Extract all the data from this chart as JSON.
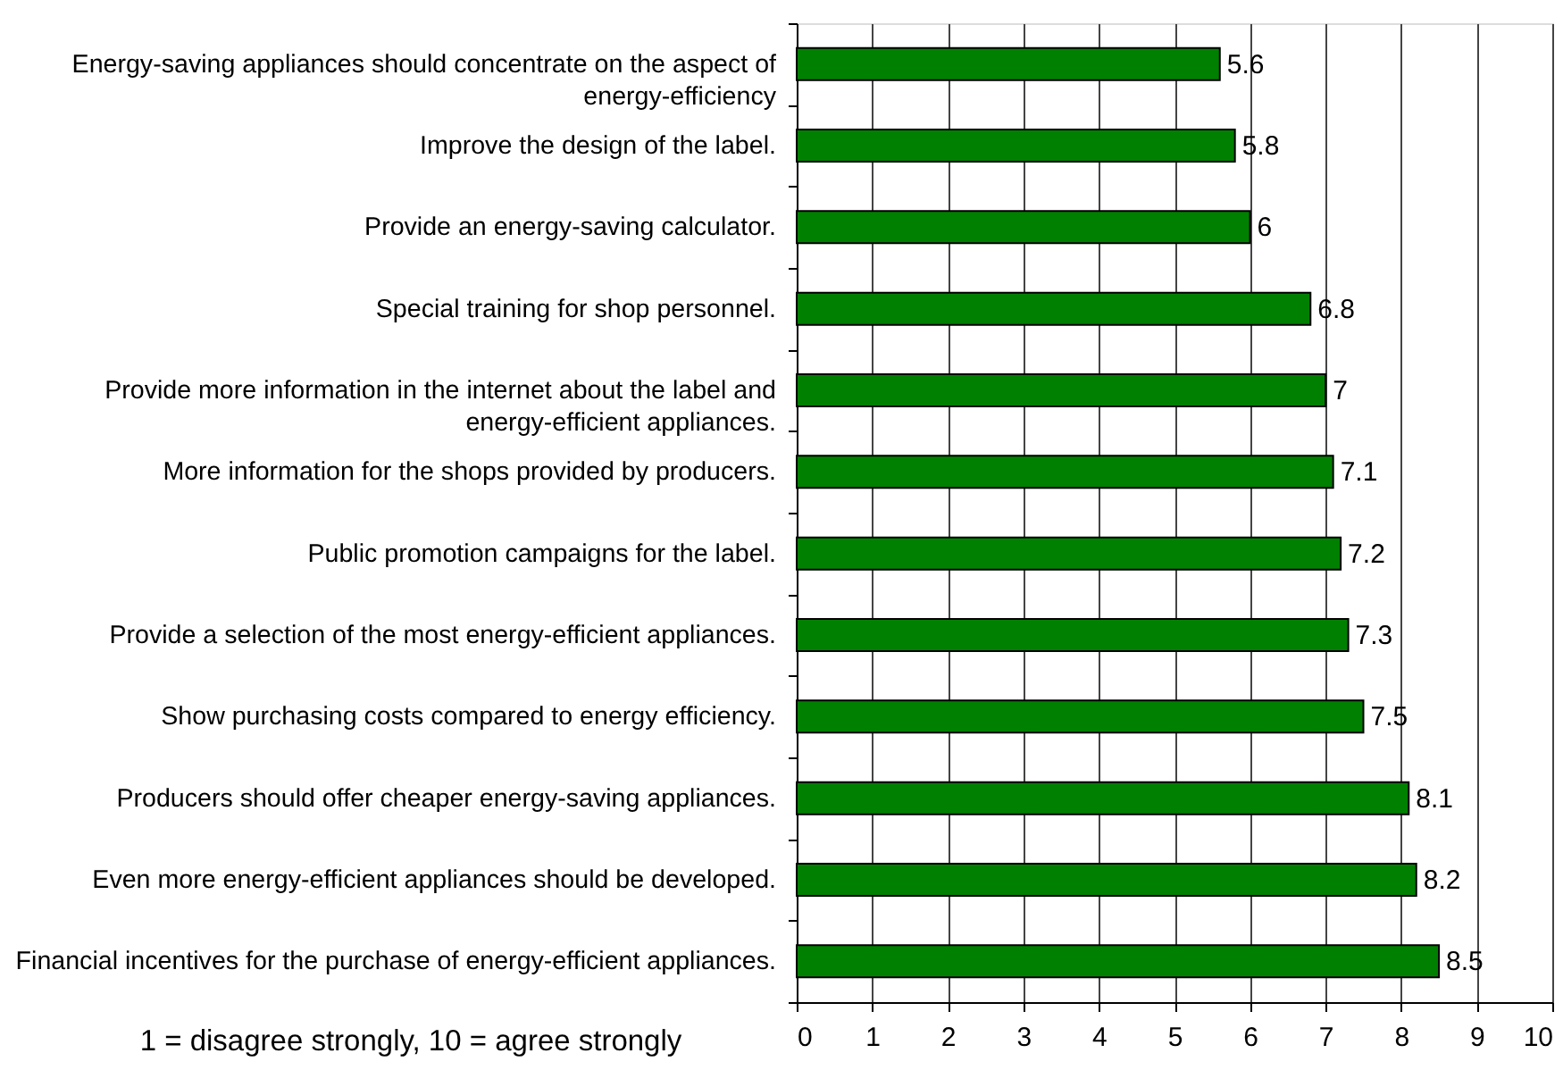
{
  "chart_data": {
    "type": "bar",
    "orientation": "horizontal",
    "categories": [
      "Energy-saving appliances should concentrate on the aspect of\nenergy-efficiency",
      "Improve the design of the label.",
      "Provide an energy-saving calculator.",
      "Special training for shop personnel.",
      "Provide more information in the internet about the label and\nenergy-efficient appliances.",
      "More information for the shops provided by producers.",
      "Public promotion campaigns for the label.",
      "Provide a selection of the most energy-efficient appliances.",
      "Show purchasing costs compared to energy efficiency.",
      "Producers should offer cheaper energy-saving appliances.",
      "Even more energy-efficient appliances should be developed.",
      "Financial incentives for the purchase of energy-efficient appliances."
    ],
    "values": [
      5.6,
      5.8,
      6,
      6.8,
      7,
      7.1,
      7.2,
      7.3,
      7.5,
      8.1,
      8.2,
      8.5
    ],
    "color": "#008000",
    "xlim": [
      0,
      10
    ],
    "xticks": [
      0,
      1,
      2,
      3,
      4,
      5,
      6,
      7,
      8,
      9,
      10
    ],
    "grid": "x",
    "data_labels": true,
    "annotations": [
      "1 = disagree strongly, 10 = agree strongly"
    ]
  }
}
